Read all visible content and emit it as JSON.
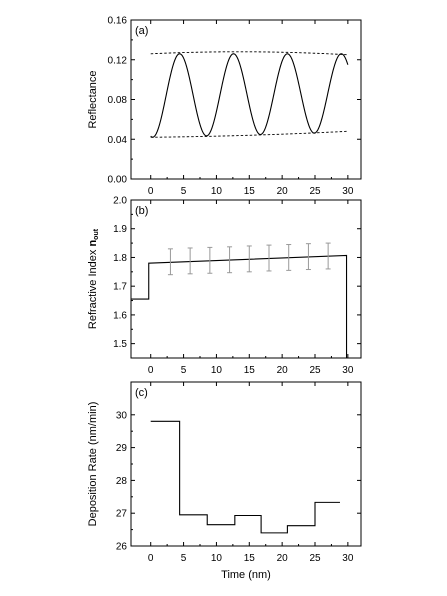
{
  "figure": {
    "xlabel": "Time (nm)"
  },
  "chart_data": [
    {
      "type": "line",
      "panel_label": "(a)",
      "ylabel": "Reflectance",
      "xlim": [
        -3,
        32
      ],
      "ylim": [
        0.0,
        0.16
      ],
      "xticks": [
        0,
        5,
        10,
        15,
        20,
        25,
        30
      ],
      "yticks": [
        0.0,
        0.04,
        0.08,
        0.12,
        0.16
      ],
      "ytick_labels": [
        "0.00",
        "0.04",
        "0.08",
        "0.12",
        "0.16"
      ],
      "series": [
        {
          "style": "solid",
          "model": "oscillation",
          "x_range": [
            0,
            30
          ],
          "minima_envelope": [
            0.042,
            0.047
          ],
          "maxima_envelope": [
            0.126,
            0.126
          ],
          "peaks_x": [
            4.4,
            12.6,
            20.8,
            29.0
          ]
        },
        {
          "style": "dashed",
          "x": [
            0,
            15,
            30
          ],
          "y": [
            0.126,
            0.128,
            0.125
          ]
        },
        {
          "style": "dashed",
          "x": [
            0,
            15,
            30
          ],
          "y": [
            0.042,
            0.044,
            0.048
          ]
        }
      ]
    },
    {
      "type": "line",
      "panel_label": "(b)",
      "ylabel_main": "Refractive Index ",
      "ylabel_bold": "n",
      "ylabel_sub": "out",
      "xlim": [
        -3,
        32
      ],
      "ylim": [
        1.45,
        2.0
      ],
      "xticks": [
        0,
        5,
        10,
        15,
        20,
        25,
        30
      ],
      "yticks": [
        1.5,
        1.6,
        1.7,
        1.8,
        1.9,
        2.0
      ],
      "ytick_labels": [
        "1.5",
        "1.6",
        "1.7",
        "1.8",
        "1.9",
        "2.0"
      ],
      "series": [
        {
          "style": "solid",
          "x": [
            -3,
            -0.3,
            -0.3,
            29.8,
            29.8
          ],
          "y": [
            1.655,
            1.655,
            1.78,
            1.807,
            1.45
          ]
        }
      ],
      "error_bars": {
        "x": [
          3,
          6,
          9,
          12,
          15,
          18,
          21,
          24,
          27
        ],
        "y": [
          1.785,
          1.788,
          1.79,
          1.792,
          1.795,
          1.798,
          1.8,
          1.803,
          1.805
        ],
        "err": 0.045
      }
    },
    {
      "type": "line",
      "panel_label": "(c)",
      "ylabel": "Deposition Rate (nm/min)",
      "xlim": [
        -3,
        32
      ],
      "ylim": [
        26.0,
        31.0
      ],
      "xticks": [
        0,
        5,
        10,
        15,
        20,
        25,
        30
      ],
      "yticks": [
        26,
        27,
        28,
        29,
        30
      ],
      "ytick_labels": [
        "26",
        "27",
        "28",
        "29",
        "30"
      ],
      "series": [
        {
          "style": "step",
          "x": [
            0,
            4.4,
            4.4,
            8.6,
            8.6,
            12.8,
            12.8,
            16.8,
            16.8,
            20.8,
            20.8,
            25.0,
            25.0,
            28.8
          ],
          "y": [
            29.8,
            29.8,
            26.95,
            26.95,
            26.65,
            26.65,
            26.93,
            26.93,
            26.4,
            26.4,
            26.62,
            26.62,
            27.33,
            27.33
          ]
        }
      ]
    }
  ]
}
